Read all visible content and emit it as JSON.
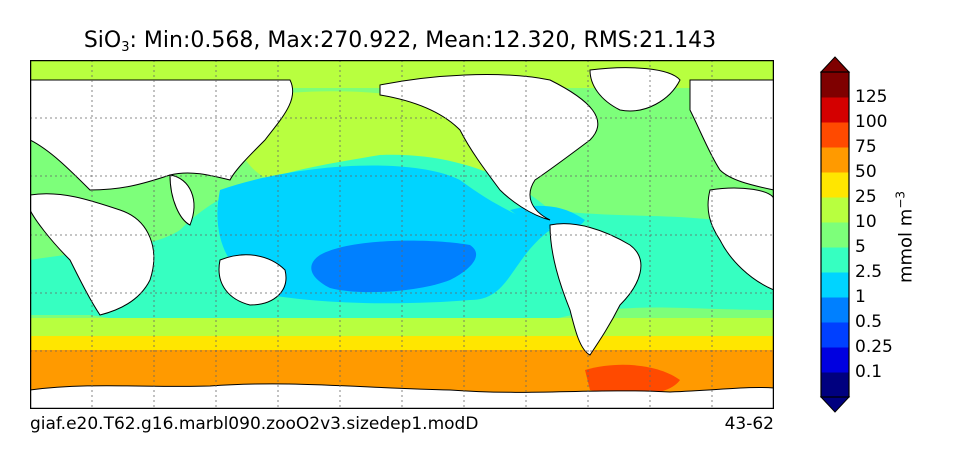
{
  "title": {
    "variable": "SiO",
    "subscript": "3",
    "stats": ": Min:0.568, Max:270.922, Mean:12.320, RMS:21.143"
  },
  "footer": {
    "case_name": "giaf.e20.T62.g16.marbl090.zooO2v3.sizedep1.modD",
    "years": "43-62"
  },
  "colorbar": {
    "unit_base": "mmol m",
    "unit_exponent": "−3",
    "levels": [
      "0.1",
      "0.25",
      "0.5",
      "1",
      "2.5",
      "5",
      "10",
      "25",
      "50",
      "75",
      "100",
      "125"
    ],
    "colors": [
      "#00007f",
      "#0000e0",
      "#0040ff",
      "#0080ff",
      "#00d4ff",
      "#36ffc1",
      "#7dff7a",
      "#b8ff3f",
      "#ffe600",
      "#ff9a00",
      "#ff4a00",
      "#d40000",
      "#7f0000"
    ]
  },
  "map": {
    "projection": "global lon-lat",
    "gridlines": "dotted",
    "land_color": "#ffffff",
    "coastline_color": "#000000"
  }
}
